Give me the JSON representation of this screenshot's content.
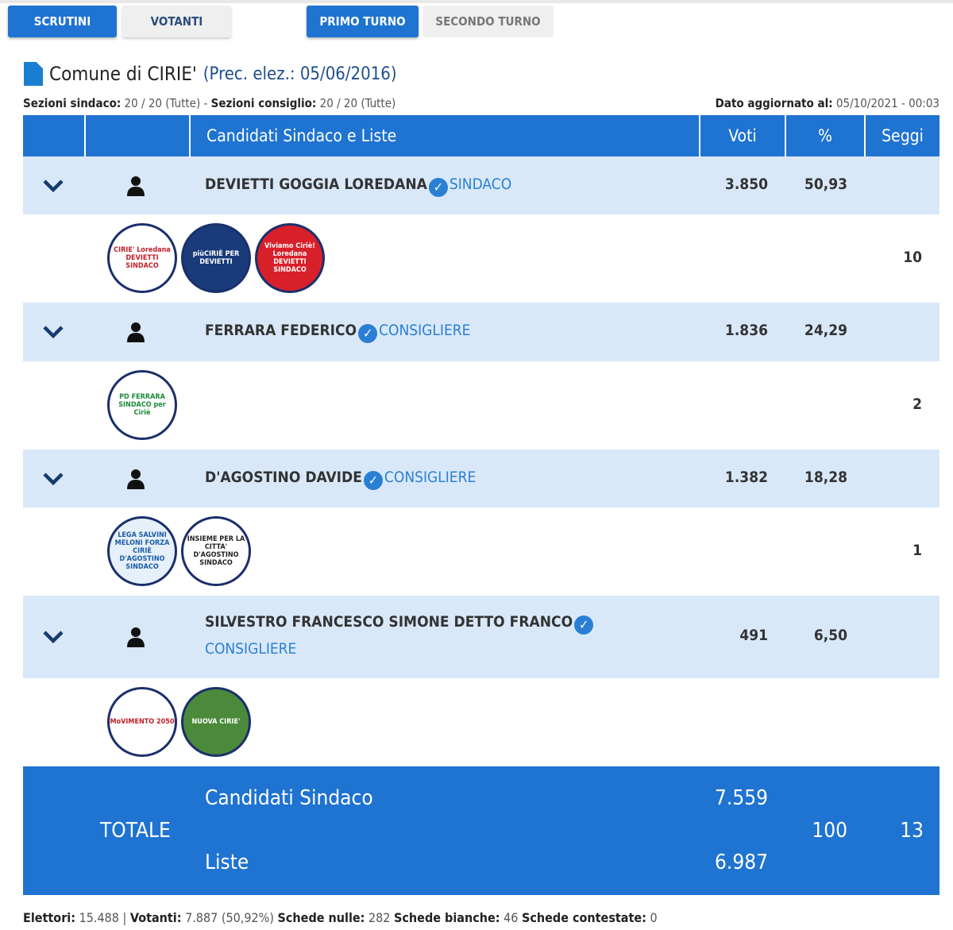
{
  "tabs": {
    "scrutini": "SCRUTINI",
    "votanti": "VOTANTI",
    "primo_turno": "PRIMO TURNO",
    "secondo_turno": "SECONDO TURNO"
  },
  "title": {
    "comune": "Comune di CIRIE'",
    "prec": "(Prec. elez.: 05/06/2016)"
  },
  "meta": {
    "sez_sindaco_label": "Sezioni sindaco:",
    "sez_sindaco": "20 / 20 (Tutte)",
    "sep": " - ",
    "sez_consiglio_label": "Sezioni consiglio:",
    "sez_consiglio": "20 / 20 (Tutte)",
    "agg_label": "Dato aggiornato al:",
    "agg": "05/10/2021 - 00:03"
  },
  "header": {
    "candidati": "Candidati Sindaco e Liste",
    "voti": "Voti",
    "perc": "%",
    "seggi": "Seggi"
  },
  "candidates": [
    {
      "name": "DEVIETTI GOGGIA LOREDANA",
      "role": "SINDACO",
      "voti": "3.850",
      "perc": "50,93",
      "seggi": "10",
      "lists": [
        {
          "text": "CIRIE' Loredana DEVIETTI SINDACO",
          "bg": "#ffffff",
          "fg": "#c0202a"
        },
        {
          "text": "piùCIRIÈ PER DEVIETTI",
          "bg": "#1a3b7a",
          "fg": "#ffffff"
        },
        {
          "text": "Viviamo Ciriè! Loredana DEVIETTI SINDACO",
          "bg": "#d8202a",
          "fg": "#ffffff"
        }
      ]
    },
    {
      "name": "FERRARA FEDERICO",
      "role": "CONSIGLIERE",
      "voti": "1.836",
      "perc": "24,29",
      "seggi": "2",
      "lists": [
        {
          "text": "PD FERRARA SINDACO per Ciriè",
          "bg": "#ffffff",
          "fg": "#1d8a3a"
        }
      ]
    },
    {
      "name": "D'AGOSTINO DAVIDE",
      "role": "CONSIGLIERE",
      "voti": "1.382",
      "perc": "18,28",
      "seggi": "1",
      "lists": [
        {
          "text": "LEGA SALVINI MELONI FORZA CIRIÈ D'AGOSTINO SINDACO",
          "bg": "#e6f0fa",
          "fg": "#1a5ca8"
        },
        {
          "text": "INSIEME PER LA CITTA' D'AGOSTINO SINDACO",
          "bg": "#ffffff",
          "fg": "#222222"
        }
      ]
    },
    {
      "name": "SILVESTRO FRANCESCO SIMONE DETTO FRANCO",
      "role": "CONSIGLIERE",
      "voti": "491",
      "perc": "6,50",
      "seggi": "",
      "lists": [
        {
          "text": "MoVIMENTO 2050",
          "bg": "#ffffff",
          "fg": "#c0202a"
        },
        {
          "text": "NUOVA CIRIE'",
          "bg": "#4a8a3a",
          "fg": "#ffffff"
        }
      ]
    }
  ],
  "totale": {
    "label": "TOTALE",
    "cand_label": "Candidati Sindaco",
    "cand_voti": "7.559",
    "liste_label": "Liste",
    "liste_voti": "6.987",
    "perc": "100",
    "seggi": "13"
  },
  "footer": {
    "elettori_label": "Elettori:",
    "elettori": "15.488",
    "sep": " | ",
    "votanti_label": "Votanti:",
    "votanti": "7.887 (50,92%)",
    "nulle_label": "Schede nulle:",
    "nulle": "282",
    "bianche_label": "Schede bianche:",
    "bianche": "46",
    "contestate_label": "Schede contestate:",
    "contestate": "0"
  },
  "colors": {
    "accent": "#1f73d1",
    "row": "#d9e8f9",
    "role": "#2a7fd4"
  }
}
